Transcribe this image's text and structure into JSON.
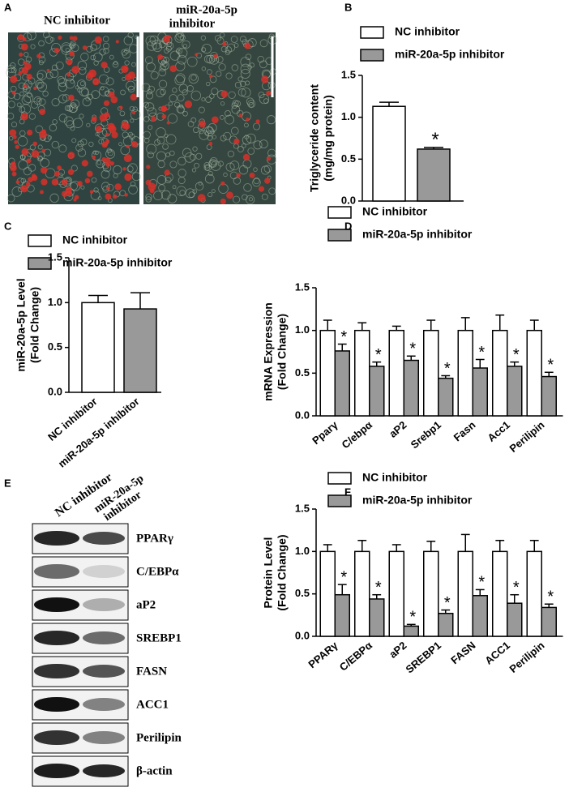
{
  "panel_a": {
    "panel": "A",
    "image_labels": [
      [
        "NC inhibitor"
      ],
      [
        "miR-20a-5p",
        "inhibitor"
      ]
    ]
  },
  "panel_e": {
    "panel": "E",
    "column_labels": [
      "NC inhibitor",
      [
        "miR-20a-5p",
        "inhibitor"
      ]
    ],
    "row_labels": [
      "PPARγ",
      "C/EBPα",
      "aP2",
      "SREBP1",
      "FASN",
      "ACC1",
      "Perilipin",
      "β-actin"
    ]
  },
  "chart_data": [
    {
      "type": "bar",
      "panel": "B",
      "ylabel": [
        "Triglyceride content",
        "(mg/mg protein)"
      ],
      "categories": [
        null
      ],
      "series": [
        {
          "name": "NC inhibitor",
          "color": "#ffffff",
          "values": [
            1.13
          ],
          "errors": [
            0.05
          ],
          "significance": [
            null
          ]
        },
        {
          "name": "miR-20a-5p inhibitor",
          "color": "#999999",
          "values": [
            0.62
          ],
          "errors": [
            0.02
          ],
          "significance": [
            "*"
          ]
        }
      ],
      "ylim": [
        0,
        1.5
      ],
      "yticks": [
        {
          "value": 0,
          "label": "0.0"
        },
        0.5,
        {
          "value": 1,
          "label": "1.0"
        },
        1.5
      ]
    },
    {
      "type": "bar",
      "panel": "C",
      "ylabel": [
        "miR-20a-5p Level",
        "(Fold Change)"
      ],
      "categories": [
        "NC inhibitor",
        "miR-20a-5p inhibitor"
      ],
      "series": [
        {
          "name": "NC inhibitor",
          "color": "#ffffff",
          "values": [
            1.0,
            null
          ],
          "errors": [
            0.08,
            null
          ],
          "significance": [
            null,
            null
          ]
        },
        {
          "name": "miR-20a-5p inhibitor",
          "color": "#999999",
          "values": [
            null,
            0.93
          ],
          "errors": [
            null,
            0.18
          ],
          "significance": [
            null,
            null
          ]
        }
      ],
      "ylim": [
        0,
        1.5
      ],
      "yticks": [
        {
          "value": 0,
          "label": "0.0"
        },
        0.5,
        {
          "value": 1,
          "label": "1.0"
        },
        1.5
      ]
    },
    {
      "type": "bar",
      "panel": "D",
      "ylabel": [
        "mRNA Expression",
        "(Fold Change)"
      ],
      "categories": [
        "Pparγ",
        "C/ebpα",
        "aP2",
        "Srebp1",
        "Fasn",
        "Acc1",
        "Perilipin"
      ],
      "series": [
        {
          "name": "NC inhibitor",
          "color": "#ffffff",
          "values": [
            1.0,
            1.0,
            1.0,
            1.0,
            1.0,
            1.0,
            1.0
          ],
          "errors": [
            0.12,
            0.09,
            0.05,
            0.12,
            0.15,
            0.18,
            0.12
          ],
          "significance": [
            null,
            null,
            null,
            null,
            null,
            null,
            null
          ]
        },
        {
          "name": "miR-20a-5p inhibitor",
          "color": "#999999",
          "values": [
            0.76,
            0.58,
            0.65,
            0.44,
            0.56,
            0.58,
            0.46
          ],
          "errors": [
            0.08,
            0.05,
            0.05,
            0.03,
            0.1,
            0.05,
            0.05
          ],
          "significance": [
            "*",
            "*",
            "*",
            "*",
            "*",
            "*",
            "*"
          ]
        }
      ],
      "ylim": [
        0,
        1.5
      ],
      "yticks": [
        {
          "value": 0,
          "label": "0.0"
        },
        0.5,
        {
          "value": 1,
          "label": "1.0"
        },
        1.5
      ]
    },
    {
      "type": "bar",
      "panel": "F",
      "ylabel": [
        "Protein Level",
        "(Fold Change)"
      ],
      "categories": [
        "PPARγ",
        "C/EBPα",
        "aP2",
        "SREBP1",
        "FASN",
        "ACC1",
        "Perilipin"
      ],
      "series": [
        {
          "name": "NC inhibitor",
          "color": "#ffffff",
          "values": [
            1.0,
            1.0,
            1.0,
            1.0,
            1.0,
            1.0,
            1.0
          ],
          "errors": [
            0.08,
            0.13,
            0.08,
            0.12,
            0.2,
            0.13,
            0.13
          ],
          "significance": [
            null,
            null,
            null,
            null,
            null,
            null,
            null
          ]
        },
        {
          "name": "miR-20a-5p inhibitor",
          "color": "#999999",
          "values": [
            0.49,
            0.44,
            0.12,
            0.27,
            0.48,
            0.39,
            0.34
          ],
          "errors": [
            0.12,
            0.05,
            0.02,
            0.04,
            0.07,
            0.1,
            0.04
          ],
          "significance": [
            "*",
            "*",
            "*",
            "*",
            "*",
            "*",
            "*"
          ]
        }
      ],
      "ylim": [
        0,
        1.5
      ],
      "yticks": [
        {
          "value": 0,
          "label": "0.0"
        },
        0.5,
        {
          "value": 1,
          "label": "1.0"
        },
        1.5
      ]
    }
  ]
}
